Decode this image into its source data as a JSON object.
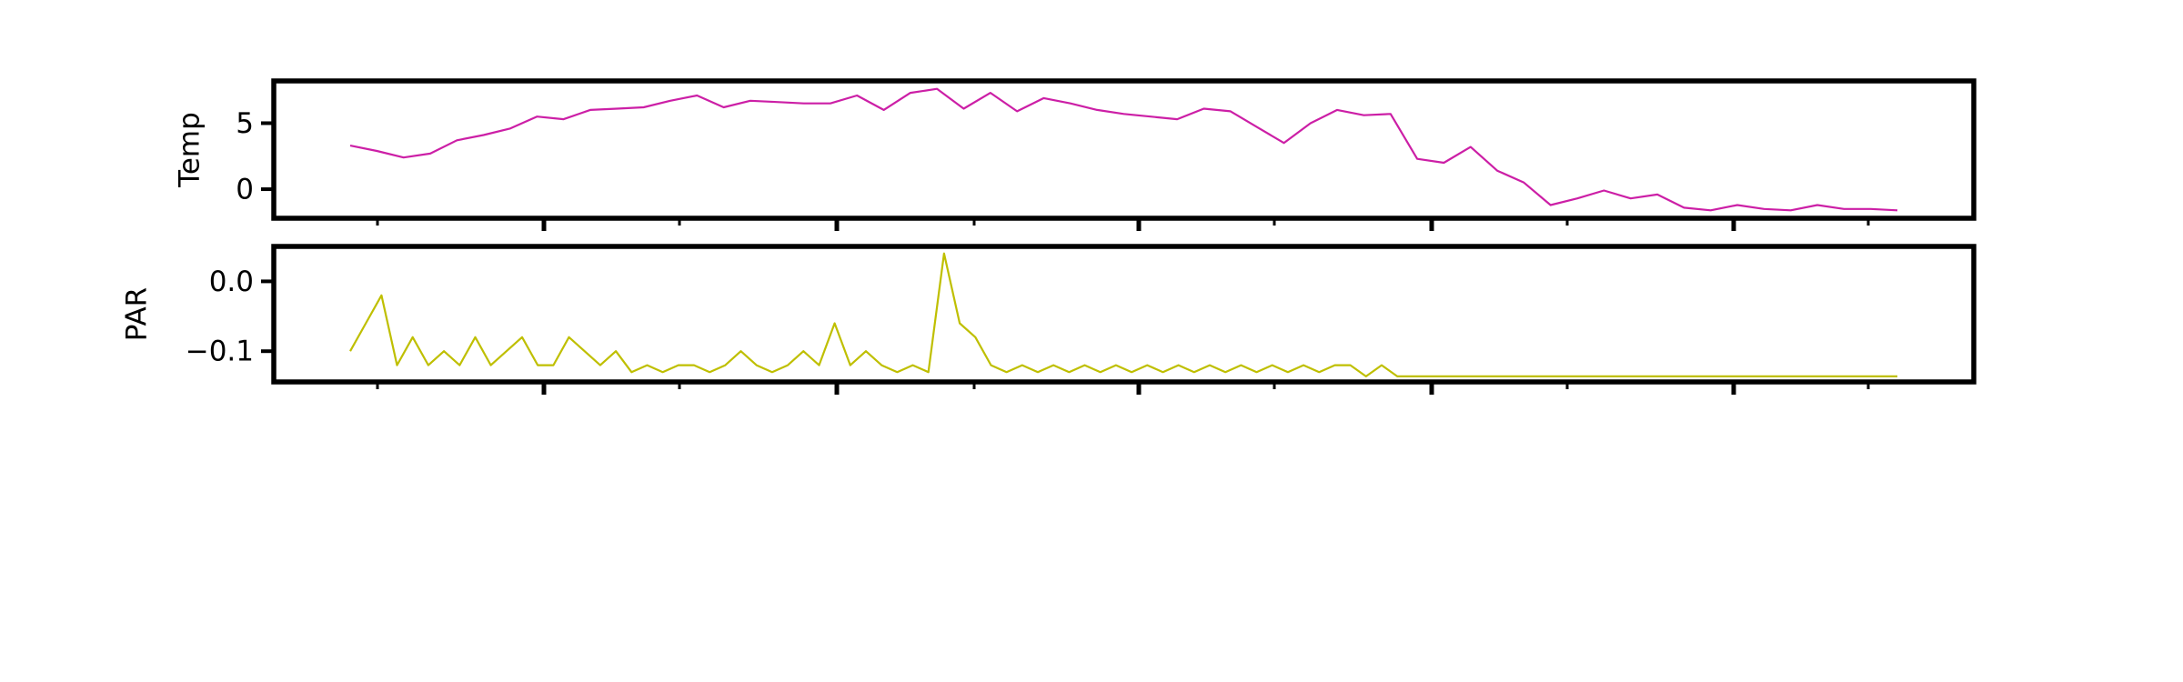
{
  "chart_data": [
    {
      "type": "line",
      "ylabel": "Temp",
      "ylim": [
        -2.2,
        8.2
      ],
      "yticks": [
        0,
        5
      ],
      "series": [
        {
          "color": "#cc1fa6",
          "values": [
            3.3,
            2.9,
            2.4,
            2.7,
            3.7,
            4.1,
            4.6,
            5.5,
            5.3,
            6.0,
            6.1,
            6.2,
            6.7,
            7.1,
            6.2,
            6.7,
            6.6,
            6.5,
            6.5,
            7.1,
            6.0,
            7.3,
            7.6,
            6.1,
            7.3,
            5.9,
            6.9,
            6.5,
            6.0,
            5.7,
            5.5,
            5.3,
            6.1,
            5.9,
            4.7,
            3.5,
            5.0,
            6.0,
            5.6,
            5.7,
            2.3,
            2.0,
            3.2,
            1.4,
            0.5,
            -1.2,
            -0.7,
            -0.1,
            -0.7,
            -0.4,
            -1.4,
            -1.6,
            -1.2,
            -1.5,
            -1.6,
            -1.2,
            -1.5,
            -1.5,
            -1.6
          ]
        }
      ]
    },
    {
      "type": "line",
      "ylabel": "PAR",
      "ylim": [
        -0.144,
        0.05
      ],
      "yticks": [
        {
          "value": 0,
          "label": "0.0"
        },
        {
          "value": -0.1,
          "label": "−0.1"
        }
      ],
      "series": [
        {
          "color": "#bfbf00",
          "values": [
            -0.1,
            -0.06,
            -0.02,
            -0.12,
            -0.08,
            -0.12,
            -0.1,
            -0.12,
            -0.08,
            -0.12,
            -0.1,
            -0.08,
            -0.12,
            -0.12,
            -0.08,
            -0.1,
            -0.12,
            -0.1,
            -0.13,
            -0.12,
            -0.13,
            -0.12,
            -0.12,
            -0.13,
            -0.12,
            -0.1,
            -0.12,
            -0.13,
            -0.12,
            -0.1,
            -0.12,
            -0.06,
            -0.12,
            -0.1,
            -0.12,
            -0.13,
            -0.12,
            -0.13,
            0.04,
            -0.06,
            -0.08,
            -0.12,
            -0.13,
            -0.12,
            -0.13,
            -0.12,
            -0.13,
            -0.12,
            -0.13,
            -0.12,
            -0.13,
            -0.12,
            -0.13,
            -0.12,
            -0.13,
            -0.12,
            -0.13,
            -0.12,
            -0.13,
            -0.12,
            -0.13,
            -0.12,
            -0.13,
            -0.12,
            -0.12,
            -0.136,
            -0.12,
            -0.136,
            -0.136,
            -0.136,
            -0.136,
            -0.136,
            -0.136,
            -0.136,
            -0.136,
            -0.136,
            -0.136,
            -0.136,
            -0.136,
            -0.136,
            -0.136,
            -0.136,
            -0.136,
            -0.136,
            -0.136,
            -0.136,
            -0.136,
            -0.136,
            -0.136,
            -0.136,
            -0.136,
            -0.136,
            -0.136,
            -0.136,
            -0.136,
            -0.136,
            -0.136,
            -0.136,
            -0.136,
            -0.136
          ]
        }
      ]
    }
  ]
}
